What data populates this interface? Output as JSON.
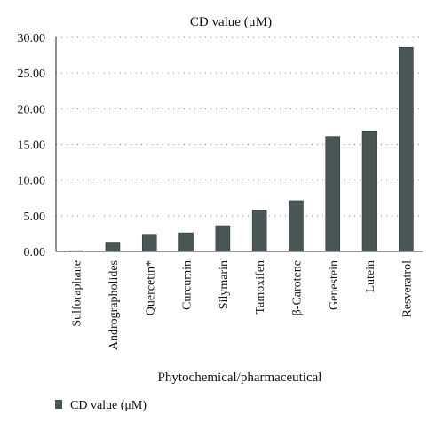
{
  "chart_data": {
    "type": "bar",
    "title": "CD value (μM)",
    "xlabel": "Phytochemical/pharmaceutical",
    "ylabel": "",
    "categories": [
      "Sulforaphane",
      "Andrographolides",
      "Quercetin*",
      "Curcumin",
      "Silymarin",
      "Tamoxifen",
      "β-Carotene",
      "Genestein",
      "Lutein",
      "Resveratrol"
    ],
    "series": [
      {
        "name": "CD value (μM)",
        "values": [
          0.1,
          1.3,
          2.4,
          2.6,
          3.6,
          5.8,
          7.1,
          16.1,
          16.9,
          28.6
        ]
      }
    ],
    "ylim": [
      0,
      30
    ],
    "yticks": [
      "0.00",
      "5.00",
      "10.00",
      "15.00",
      "20.00",
      "25.00",
      "30.00"
    ],
    "grid": "dotted horizontal",
    "legend_position": "bottom-left",
    "bar_color": "#4a5556"
  }
}
